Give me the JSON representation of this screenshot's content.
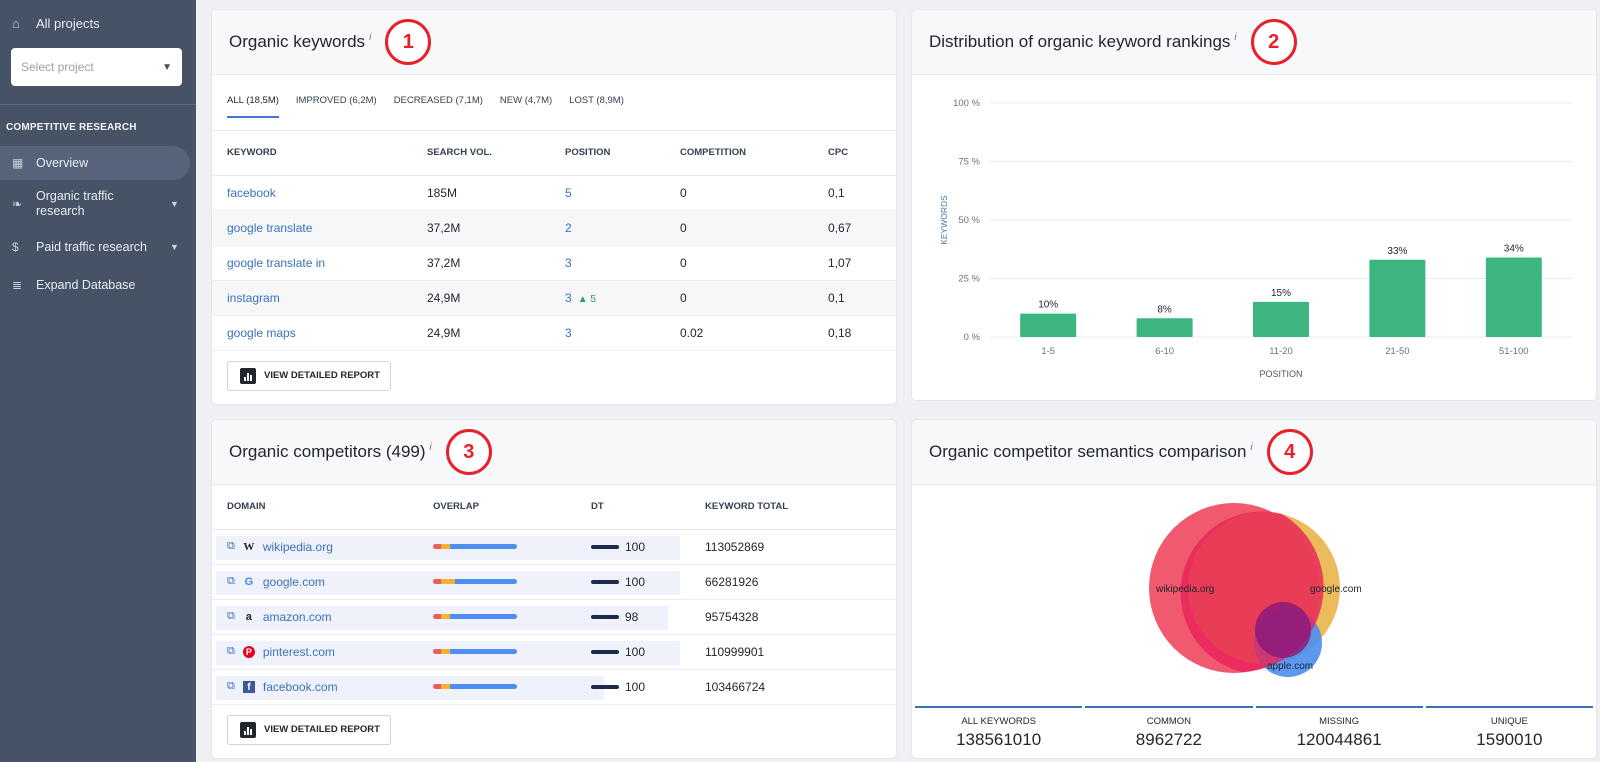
{
  "sidebar": {
    "all_projects": "All projects",
    "select_placeholder": "Select project",
    "section_title": "COMPETITIVE RESEARCH",
    "items": [
      {
        "label": "Overview",
        "icon": "grid-icon"
      },
      {
        "label": "Organic traffic research",
        "icon": "leaf-icon"
      },
      {
        "label": "Paid traffic research",
        "icon": "dollar-icon"
      },
      {
        "label": "Expand Database",
        "icon": "database-icon"
      }
    ]
  },
  "organic_keywords": {
    "title": "Organic keywords",
    "info": "i",
    "badge": "1",
    "tabs": [
      "ALL (18,5M)",
      "IMPROVED (6,2M)",
      "DECREASED (7,1M)",
      "NEW (4,7M)",
      "LOST (8,9M)"
    ],
    "columns": [
      "KEYWORD",
      "SEARCH VOL.",
      "POSITION",
      "COMPETITION",
      "CPC"
    ],
    "rows": [
      {
        "keyword": "facebook",
        "volume": "185M",
        "position": "5",
        "change": "",
        "competition": "0",
        "cpc": "0,1"
      },
      {
        "keyword": "google translate",
        "volume": "37,2M",
        "position": "2",
        "change": "",
        "competition": "0",
        "cpc": "0,67"
      },
      {
        "keyword": "google translate in",
        "volume": "37,2M",
        "position": "3",
        "change": "",
        "competition": "0",
        "cpc": "1,07"
      },
      {
        "keyword": "instagram",
        "volume": "24,9M",
        "position": "3",
        "change": "▲ 5",
        "competition": "0",
        "cpc": "0,1"
      },
      {
        "keyword": "google maps",
        "volume": "24,9M",
        "position": "3",
        "competition": "0.02",
        "change": "",
        "cpc": "0,18"
      }
    ],
    "button": "VIEW DETAILED REPORT"
  },
  "distribution": {
    "title": "Distribution of organic keyword rankings",
    "info": "i",
    "badge": "2"
  },
  "chart_data": {
    "type": "bar",
    "categories": [
      "1-5",
      "6-10",
      "11-20",
      "21-50",
      "51-100"
    ],
    "values": [
      10,
      8,
      15,
      33,
      34
    ],
    "data_labels": [
      "10%",
      "8%",
      "15%",
      "33%",
      "34%"
    ],
    "xlabel": "POSITION",
    "ylabel": "KEYWORDS",
    "ylim": [
      0,
      100
    ],
    "yticks": [
      "0 %",
      "25 %",
      "50 %",
      "75 %",
      "100 %"
    ],
    "color": "#3db57e",
    "grid": true
  },
  "competitors": {
    "title": "Organic competitors (499)",
    "info": "i",
    "badge": "3",
    "columns": [
      "DOMAIN",
      "OVERLAP",
      "DT",
      "KEYWORD TOTAL"
    ],
    "rows": [
      {
        "domain": "wikipedia.org",
        "favicon": "W",
        "dt": "100",
        "total": "113052869"
      },
      {
        "domain": "google.com",
        "favicon": "G",
        "dt": "100",
        "total": "66281926"
      },
      {
        "domain": "amazon.com",
        "favicon": "a",
        "dt": "98",
        "total": "95754328"
      },
      {
        "domain": "pinterest.com",
        "favicon": "P",
        "dt": "100",
        "total": "110999901"
      },
      {
        "domain": "facebook.com",
        "favicon": "f",
        "dt": "100",
        "total": "103466724"
      }
    ],
    "button": "VIEW DETAILED REPORT"
  },
  "semantics": {
    "title": "Organic competitor semantics comparison",
    "info": "i",
    "badge": "4",
    "venn_labels": [
      "wikipedia.org",
      "google.com",
      "apple.com"
    ],
    "stats": [
      {
        "label": "ALL KEYWORDS",
        "value": "138561010"
      },
      {
        "label": "COMMON",
        "value": "8962722"
      },
      {
        "label": "MISSING",
        "value": "120044861"
      },
      {
        "label": "UNIQUE",
        "value": "1590010"
      }
    ]
  }
}
